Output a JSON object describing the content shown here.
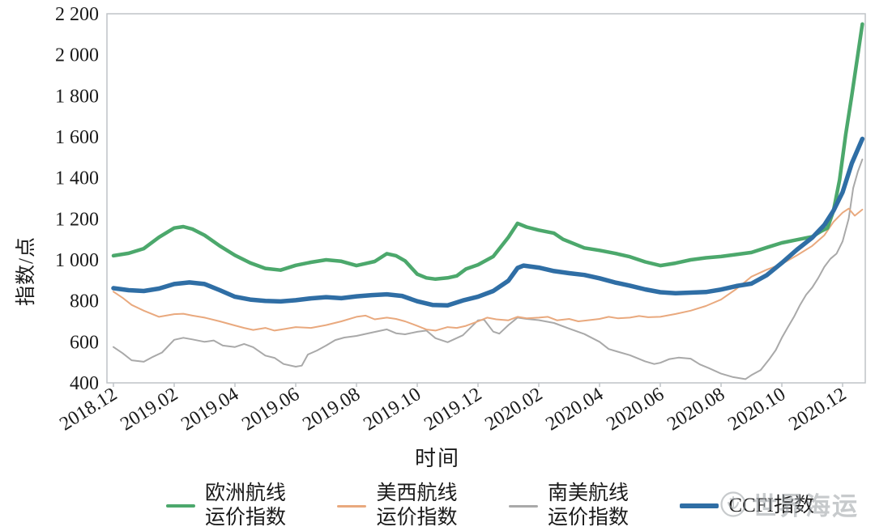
{
  "axis": {
    "x_title": "时间",
    "y_title": "指数/点"
  },
  "watermark": {
    "text": "世界海运"
  },
  "legend": {
    "items": [
      {
        "lines": [
          "欧洲航线",
          "运价指数"
        ],
        "color": "#4ca86c"
      },
      {
        "lines": [
          "美西航线",
          "运价指数"
        ],
        "color": "#e9a97e"
      },
      {
        "lines": [
          "南美航线",
          "运价指数"
        ],
        "color": "#a9a9a9"
      },
      {
        "lines": [
          "CCFI指数"
        ],
        "color": "#2f6ea5"
      }
    ]
  },
  "chart_data": {
    "type": "line",
    "title": "",
    "xlabel": "时间",
    "ylabel": "指数/点",
    "grid": false,
    "legend_position": "bottom",
    "x_unit": "months since 2018.12 (weekly index data)",
    "x_tick_labels": [
      "2018.12",
      "2019.02",
      "2019.04",
      "2019.06",
      "2019.08",
      "2019.10",
      "2019.12",
      "2020.02",
      "2020.04",
      "2020.06",
      "2020.08",
      "2020.10",
      "2020.12"
    ],
    "x_tick_months": [
      0,
      2,
      4,
      6,
      8,
      10,
      12,
      14,
      16,
      18,
      20,
      22,
      24
    ],
    "xlim": [
      -0.2,
      24.75
    ],
    "ylim": [
      400,
      2200
    ],
    "y_ticks": [
      400,
      600,
      800,
      1000,
      1200,
      1400,
      1600,
      1800,
      2000,
      2200
    ],
    "y_tick_labels": [
      "400",
      "600",
      "800",
      "1 000",
      "1 200",
      "1 400",
      "1 600",
      "1 800",
      "2 000",
      "2 200"
    ],
    "series": [
      {
        "name": "南美航线运价指数",
        "color": "#a9a9a9",
        "width": 2,
        "points": [
          [
            0,
            575
          ],
          [
            0.3,
            545
          ],
          [
            0.6,
            510
          ],
          [
            1,
            503
          ],
          [
            1.3,
            527
          ],
          [
            1.6,
            548
          ],
          [
            2,
            610
          ],
          [
            2.3,
            620
          ],
          [
            2.6,
            612
          ],
          [
            3,
            600
          ],
          [
            3.3,
            607
          ],
          [
            3.6,
            582
          ],
          [
            4,
            575
          ],
          [
            4.3,
            590
          ],
          [
            4.6,
            574
          ],
          [
            5,
            533
          ],
          [
            5.3,
            522
          ],
          [
            5.6,
            492
          ],
          [
            6,
            479
          ],
          [
            6.2,
            484
          ],
          [
            6.4,
            538
          ],
          [
            6.7,
            558
          ],
          [
            7,
            582
          ],
          [
            7.3,
            609
          ],
          [
            7.6,
            621
          ],
          [
            8,
            629
          ],
          [
            8.5,
            645
          ],
          [
            9,
            661
          ],
          [
            9.3,
            642
          ],
          [
            9.6,
            637
          ],
          [
            10,
            649
          ],
          [
            10.3,
            655
          ],
          [
            10.6,
            618
          ],
          [
            11,
            598
          ],
          [
            11.5,
            632
          ],
          [
            12,
            705
          ],
          [
            12.2,
            708
          ],
          [
            12.5,
            650
          ],
          [
            12.7,
            640
          ],
          [
            13,
            682
          ],
          [
            13.3,
            718
          ],
          [
            13.6,
            712
          ],
          [
            14,
            706
          ],
          [
            14.5,
            692
          ],
          [
            15,
            665
          ],
          [
            15.5,
            638
          ],
          [
            16,
            600
          ],
          [
            16.3,
            565
          ],
          [
            16.6,
            552
          ],
          [
            17,
            535
          ],
          [
            17.5,
            505
          ],
          [
            17.8,
            492
          ],
          [
            18,
            498
          ],
          [
            18.3,
            516
          ],
          [
            18.6,
            523
          ],
          [
            19,
            518
          ],
          [
            19.3,
            490
          ],
          [
            19.6,
            472
          ],
          [
            20,
            445
          ],
          [
            20.4,
            428
          ],
          [
            20.8,
            418
          ],
          [
            21,
            438
          ],
          [
            21.3,
            462
          ],
          [
            21.6,
            518
          ],
          [
            21.8,
            560
          ],
          [
            22,
            620
          ],
          [
            22.2,
            672
          ],
          [
            22.4,
            722
          ],
          [
            22.6,
            780
          ],
          [
            22.8,
            830
          ],
          [
            23,
            865
          ],
          [
            23.2,
            912
          ],
          [
            23.4,
            966
          ],
          [
            23.6,
            1005
          ],
          [
            23.8,
            1030
          ],
          [
            24,
            1090
          ],
          [
            24.2,
            1200
          ],
          [
            24.35,
            1350
          ],
          [
            24.5,
            1430
          ],
          [
            24.65,
            1490
          ]
        ]
      },
      {
        "name": "美西航线运价指数",
        "color": "#e9a97e",
        "width": 2,
        "points": [
          [
            0,
            845
          ],
          [
            0.3,
            815
          ],
          [
            0.6,
            780
          ],
          [
            1,
            752
          ],
          [
            1.5,
            722
          ],
          [
            2,
            735
          ],
          [
            2.3,
            737
          ],
          [
            2.6,
            728
          ],
          [
            3,
            718
          ],
          [
            3.5,
            700
          ],
          [
            4,
            680
          ],
          [
            4.3,
            668
          ],
          [
            4.6,
            658
          ],
          [
            5,
            668
          ],
          [
            5.3,
            655
          ],
          [
            5.6,
            662
          ],
          [
            6,
            672
          ],
          [
            6.5,
            668
          ],
          [
            7,
            682
          ],
          [
            7.5,
            700
          ],
          [
            8,
            722
          ],
          [
            8.3,
            728
          ],
          [
            8.6,
            710
          ],
          [
            9,
            718
          ],
          [
            9.3,
            712
          ],
          [
            9.6,
            700
          ],
          [
            10,
            678
          ],
          [
            10.3,
            660
          ],
          [
            10.6,
            655
          ],
          [
            11,
            672
          ],
          [
            11.3,
            668
          ],
          [
            11.6,
            678
          ],
          [
            12,
            700
          ],
          [
            12.3,
            718
          ],
          [
            12.6,
            710
          ],
          [
            13,
            705
          ],
          [
            13.3,
            722
          ],
          [
            13.6,
            715
          ],
          [
            14,
            718
          ],
          [
            14.3,
            722
          ],
          [
            14.6,
            705
          ],
          [
            15,
            712
          ],
          [
            15.3,
            700
          ],
          [
            15.6,
            705
          ],
          [
            16,
            712
          ],
          [
            16.3,
            722
          ],
          [
            16.6,
            715
          ],
          [
            17,
            718
          ],
          [
            17.3,
            726
          ],
          [
            17.6,
            720
          ],
          [
            18,
            722
          ],
          [
            18.5,
            736
          ],
          [
            19,
            752
          ],
          [
            19.5,
            775
          ],
          [
            20,
            806
          ],
          [
            20.5,
            858
          ],
          [
            21,
            918
          ],
          [
            21.5,
            952
          ],
          [
            22,
            980
          ],
          [
            22.5,
            1022
          ],
          [
            23,
            1068
          ],
          [
            23.4,
            1120
          ],
          [
            23.7,
            1185
          ],
          [
            24,
            1230
          ],
          [
            24.2,
            1250
          ],
          [
            24.4,
            1215
          ],
          [
            24.65,
            1245
          ]
        ]
      },
      {
        "name": "欧洲航线运价指数",
        "color": "#4ca86c",
        "width": 4.5,
        "points": [
          [
            0,
            1020
          ],
          [
            0.5,
            1032
          ],
          [
            1,
            1055
          ],
          [
            1.5,
            1110
          ],
          [
            2,
            1155
          ],
          [
            2.3,
            1162
          ],
          [
            2.6,
            1150
          ],
          [
            3,
            1120
          ],
          [
            3.5,
            1068
          ],
          [
            4,
            1022
          ],
          [
            4.5,
            985
          ],
          [
            5,
            958
          ],
          [
            5.5,
            950
          ],
          [
            6,
            973
          ],
          [
            6.5,
            988
          ],
          [
            7,
            1000
          ],
          [
            7.5,
            993
          ],
          [
            8,
            972
          ],
          [
            8.3,
            982
          ],
          [
            8.6,
            992
          ],
          [
            9,
            1030
          ],
          [
            9.3,
            1020
          ],
          [
            9.6,
            995
          ],
          [
            10,
            930
          ],
          [
            10.3,
            912
          ],
          [
            10.6,
            906
          ],
          [
            11,
            912
          ],
          [
            11.3,
            922
          ],
          [
            11.6,
            955
          ],
          [
            12,
            976
          ],
          [
            12.5,
            1016
          ],
          [
            13,
            1110
          ],
          [
            13.3,
            1178
          ],
          [
            13.6,
            1160
          ],
          [
            14,
            1145
          ],
          [
            14.5,
            1130
          ],
          [
            14.8,
            1100
          ],
          [
            15,
            1088
          ],
          [
            15.5,
            1058
          ],
          [
            16,
            1046
          ],
          [
            16.5,
            1032
          ],
          [
            17,
            1015
          ],
          [
            17.5,
            990
          ],
          [
            18,
            972
          ],
          [
            18.5,
            984
          ],
          [
            19,
            1000
          ],
          [
            19.5,
            1010
          ],
          [
            20,
            1016
          ],
          [
            20.5,
            1026
          ],
          [
            21,
            1036
          ],
          [
            21.5,
            1060
          ],
          [
            22,
            1083
          ],
          [
            22.5,
            1098
          ],
          [
            23,
            1113
          ],
          [
            23.3,
            1140
          ],
          [
            23.5,
            1155
          ],
          [
            23.7,
            1240
          ],
          [
            23.9,
            1390
          ],
          [
            24.1,
            1610
          ],
          [
            24.3,
            1800
          ],
          [
            24.5,
            2000
          ],
          [
            24.65,
            2150
          ]
        ]
      },
      {
        "name": "CCFI指数",
        "color": "#2f6ea5",
        "width": 5.5,
        "points": [
          [
            0,
            862
          ],
          [
            0.5,
            852
          ],
          [
            1,
            848
          ],
          [
            1.5,
            860
          ],
          [
            2,
            882
          ],
          [
            2.5,
            890
          ],
          [
            3,
            882
          ],
          [
            3.5,
            852
          ],
          [
            4,
            820
          ],
          [
            4.5,
            806
          ],
          [
            5,
            800
          ],
          [
            5.5,
            797
          ],
          [
            6,
            803
          ],
          [
            6.5,
            812
          ],
          [
            7,
            818
          ],
          [
            7.5,
            813
          ],
          [
            8,
            822
          ],
          [
            8.5,
            828
          ],
          [
            9,
            832
          ],
          [
            9.5,
            824
          ],
          [
            10,
            798
          ],
          [
            10.5,
            780
          ],
          [
            11,
            778
          ],
          [
            11.5,
            802
          ],
          [
            12,
            820
          ],
          [
            12.5,
            848
          ],
          [
            13,
            898
          ],
          [
            13.3,
            960
          ],
          [
            13.5,
            972
          ],
          [
            13.7,
            968
          ],
          [
            14,
            962
          ],
          [
            14.5,
            945
          ],
          [
            15,
            935
          ],
          [
            15.5,
            926
          ],
          [
            16,
            910
          ],
          [
            16.5,
            890
          ],
          [
            17,
            874
          ],
          [
            17.5,
            856
          ],
          [
            18,
            842
          ],
          [
            18.5,
            837
          ],
          [
            19,
            840
          ],
          [
            19.5,
            843
          ],
          [
            20,
            855
          ],
          [
            20.5,
            872
          ],
          [
            21,
            884
          ],
          [
            21.5,
            925
          ],
          [
            22,
            985
          ],
          [
            22.5,
            1050
          ],
          [
            23,
            1108
          ],
          [
            23.4,
            1170
          ],
          [
            23.7,
            1240
          ],
          [
            24,
            1330
          ],
          [
            24.3,
            1470
          ],
          [
            24.65,
            1590
          ]
        ]
      }
    ]
  }
}
